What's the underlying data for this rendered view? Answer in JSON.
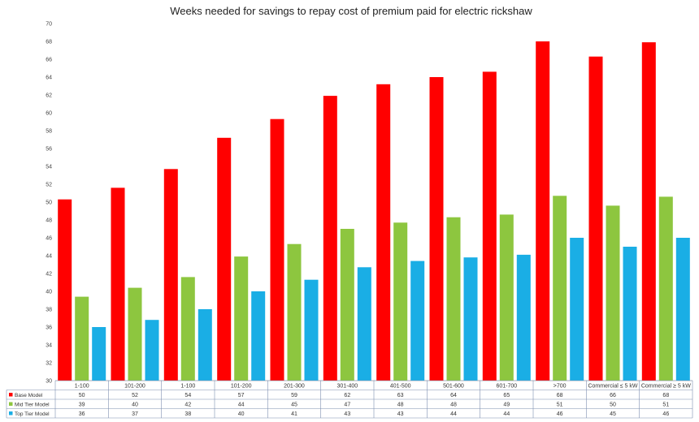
{
  "chart_data": {
    "type": "bar",
    "title": "Weeks needed for savings to repay cost of premium paid for electric rickshaw",
    "xlabel": "",
    "ylabel": "",
    "ylim": [
      30,
      70
    ],
    "yticks": [
      30,
      32,
      34,
      36,
      38,
      40,
      42,
      44,
      46,
      48,
      50,
      52,
      54,
      56,
      58,
      60,
      62,
      64,
      66,
      68,
      70
    ],
    "grid": false,
    "legend": "data-table-left",
    "categories": [
      "1-100",
      "101-200",
      "1-100",
      "101-200",
      "201-300",
      "301-400",
      "401-500",
      "501-600",
      "601-700",
      ">700",
      "Commercial ≤ 5 kW",
      "Commercial ≥ 5 kW"
    ],
    "series": [
      {
        "name": "Base Model",
        "color": "#ff0000",
        "values": [
          50.3,
          51.6,
          53.7,
          57.2,
          59.3,
          61.9,
          63.2,
          64.0,
          64.6,
          68.0,
          66.3,
          67.9
        ],
        "labels": [
          "50",
          "52",
          "54",
          "57",
          "59",
          "62",
          "63",
          "64",
          "65",
          "68",
          "66",
          "68"
        ]
      },
      {
        "name": "Mid Tier Model",
        "color": "#8dc63f",
        "values": [
          39.4,
          40.4,
          41.6,
          43.9,
          45.3,
          47.0,
          47.7,
          48.3,
          48.6,
          50.7,
          49.6,
          50.6
        ],
        "labels": [
          "39",
          "40",
          "42",
          "44",
          "45",
          "47",
          "48",
          "48",
          "49",
          "51",
          "50",
          "51"
        ]
      },
      {
        "name": "Top Tier Model",
        "color": "#1aaee5",
        "values": [
          36.0,
          36.8,
          38.0,
          40.0,
          41.3,
          42.7,
          43.4,
          43.8,
          44.1,
          46.0,
          45.0,
          46.0
        ],
        "labels": [
          "36",
          "37",
          "38",
          "40",
          "41",
          "43",
          "43",
          "44",
          "44",
          "46",
          "45",
          "46"
        ]
      }
    ]
  }
}
